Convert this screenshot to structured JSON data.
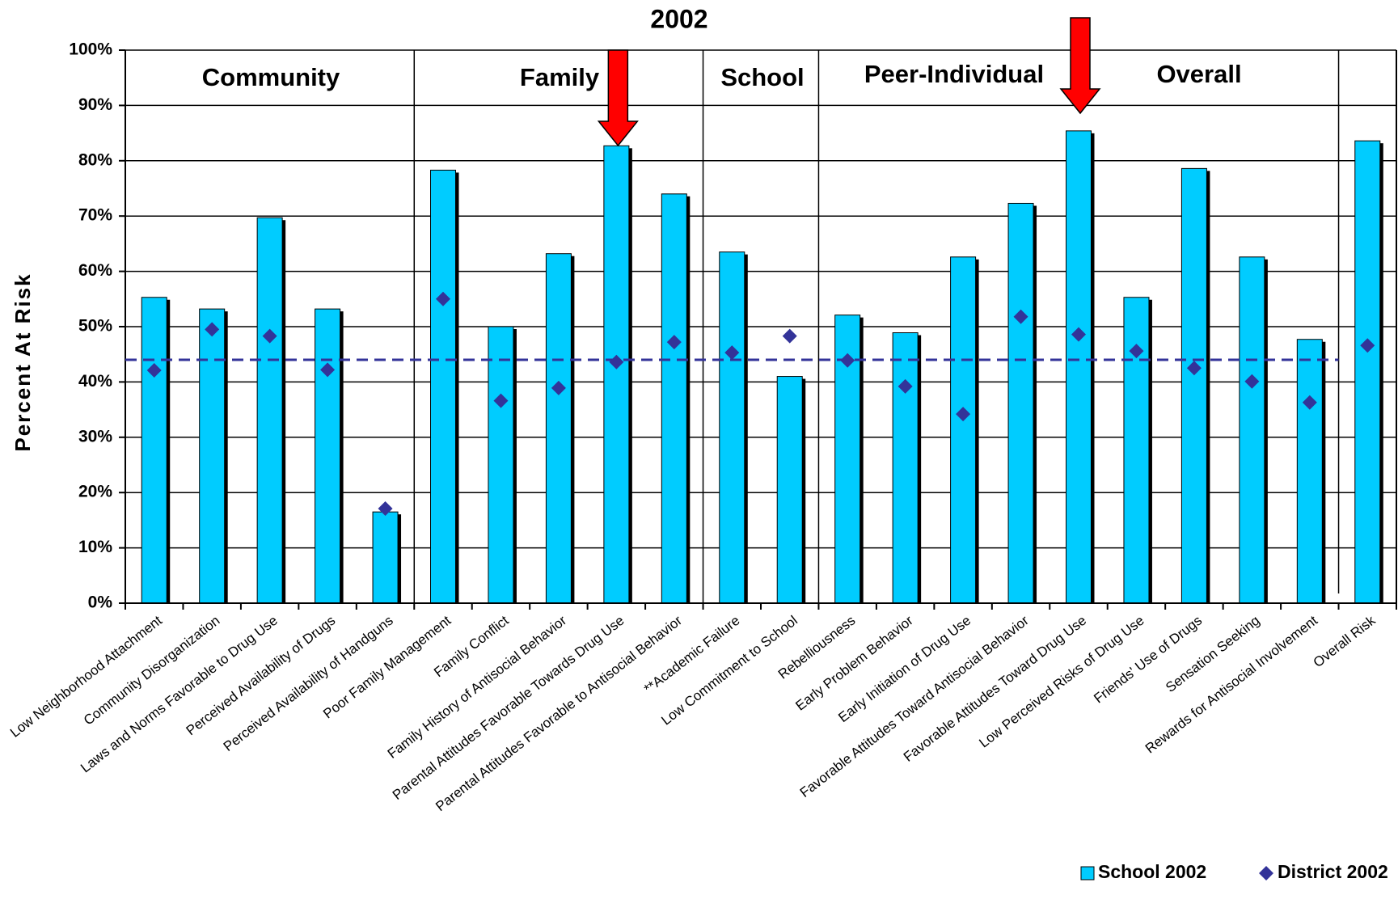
{
  "chart_data": {
    "type": "bar",
    "title": "2002",
    "y_label": "Percent At Risk",
    "groups": [
      "Community",
      "Family",
      "School",
      "Peer-Individual",
      "Overall"
    ],
    "categories": [
      "Low Neighborhood Attachment",
      "Community Disorganization",
      "Laws and Norms Favorable to Drug Use",
      "Perceived Availability of Drugs",
      "Perceived Availability of Handguns",
      "Poor Family Management",
      "Family Conflict",
      "Family History of Antisocial Behavior",
      "Parental Attitudes Favorable Towards Drug Use",
      "Parental Attitudes Favorable to Antisocial Behavior",
      "**Academic Failure",
      "Low Commitment to School",
      "Rebelliousness",
      "Early Problem Behavior",
      "Early Initiation of Drug Use",
      "Favorable Attitudes Toward Antisocial Behavior",
      "Favorable Attitudes Toward Drug Use",
      "Low Perceived Risks of Drug Use",
      "Friends' Use of Drugs",
      "Sensation Seeking",
      "Rewards for Antisocial Involvement",
      "Overall Risk"
    ],
    "series": [
      {
        "name": "School 2002",
        "color": "#00ccff",
        "values": [
          55.3,
          53.2,
          69.7,
          53.2,
          16.5,
          78.3,
          50.0,
          63.2,
          82.7,
          74.0,
          63.5,
          41.0,
          52.1,
          48.9,
          62.6,
          72.3,
          85.4,
          55.3,
          78.6,
          62.6,
          47.7,
          83.6
        ]
      },
      {
        "name": "District 2002",
        "color": "#333399",
        "values": [
          42.1,
          49.5,
          48.3,
          42.2,
          17.1,
          55.0,
          36.6,
          38.9,
          43.6,
          47.2,
          45.3,
          48.3,
          43.9,
          39.2,
          34.2,
          51.8,
          48.6,
          45.6,
          42.5,
          40.1,
          36.3,
          46.6
        ]
      }
    ],
    "reference_line": 44,
    "ylim": [
      0,
      100
    ],
    "yticks": [
      {
        "value": 0,
        "label": "0%"
      },
      {
        "value": 10,
        "label": "10%"
      },
      {
        "value": 20,
        "label": "20%"
      },
      {
        "value": 30,
        "label": "30%"
      },
      {
        "value": 40,
        "label": "40%"
      },
      {
        "value": 50,
        "label": "50%"
      },
      {
        "value": 60,
        "label": "60%"
      },
      {
        "value": 70,
        "label": "70%"
      },
      {
        "value": 80,
        "label": "80%"
      },
      {
        "value": 90,
        "label": "90%"
      },
      {
        "value": 100,
        "label": "100%"
      }
    ],
    "grid": true,
    "legend": "bottom-right"
  }
}
